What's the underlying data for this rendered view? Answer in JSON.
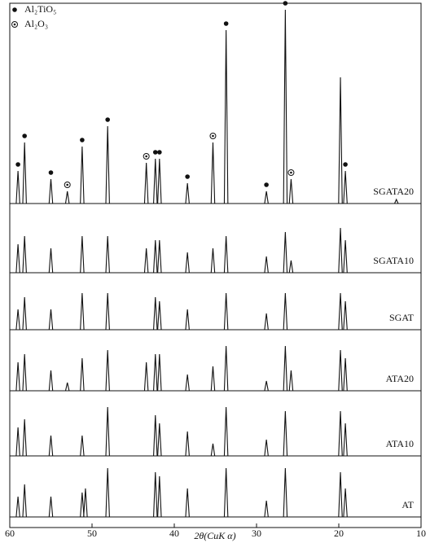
{
  "chart_data": {
    "type": "xrd",
    "xlabel": "2θ(CuK α)",
    "xlim": [
      60,
      10
    ],
    "xticks": [
      60,
      50,
      40,
      30,
      20,
      10
    ],
    "legend": [
      "Al₂TiO₅",
      "Al₂O₃"
    ],
    "series": [
      {
        "name": "SGATA20",
        "x": [
          59,
          58.2,
          55,
          53,
          51.2,
          48.1,
          43.4,
          42.3,
          41.8,
          38.4,
          35.3,
          33.7,
          28.8,
          26.5,
          25.8,
          19.8,
          19.2,
          13
        ],
        "values": [
          40,
          75,
          30,
          15,
          70,
          95,
          50,
          55,
          55,
          25,
          75,
          213,
          15,
          238,
          30,
          155,
          40,
          5
        ]
      },
      {
        "name": "SGATA10",
        "x": [
          59,
          58.2,
          55,
          51.2,
          48.1,
          43.4,
          42.3,
          41.8,
          38.4,
          35.3,
          33.7,
          28.8,
          26.5,
          25.8,
          19.8,
          19.2
        ],
        "values": [
          35,
          45,
          30,
          45,
          45,
          30,
          40,
          40,
          25,
          30,
          45,
          20,
          50,
          15,
          55,
          40
        ]
      },
      {
        "name": "SGAT",
        "x": [
          59,
          58.2,
          55,
          51.2,
          48.1,
          42.3,
          41.8,
          38.4,
          33.7,
          28.8,
          26.5,
          19.8,
          19.2
        ],
        "values": [
          25,
          40,
          25,
          45,
          45,
          40,
          35,
          25,
          45,
          20,
          45,
          45,
          35
        ]
      },
      {
        "name": "ATA20",
        "x": [
          59,
          58.2,
          55,
          53,
          51.2,
          48.1,
          43.4,
          42.3,
          41.8,
          38.4,
          35.3,
          33.7,
          28.8,
          26.5,
          25.8,
          19.8,
          19.2
        ],
        "values": [
          35,
          45,
          25,
          10,
          40,
          50,
          35,
          45,
          45,
          20,
          30,
          55,
          12,
          55,
          25,
          50,
          40
        ]
      },
      {
        "name": "ATA10",
        "x": [
          59,
          58.2,
          55,
          51.2,
          48.1,
          42.3,
          41.8,
          38.4,
          35.3,
          33.7,
          28.8,
          26.5,
          19.8,
          19.2
        ],
        "values": [
          35,
          45,
          25,
          25,
          60,
          50,
          40,
          30,
          15,
          60,
          20,
          55,
          55,
          40
        ]
      },
      {
        "name": "AT",
        "x": [
          59,
          58.2,
          55,
          51.2,
          50.8,
          48.1,
          42.3,
          41.8,
          38.4,
          33.7,
          28.8,
          26.5,
          19.8,
          19.2
        ],
        "values": [
          25,
          40,
          25,
          30,
          35,
          60,
          55,
          50,
          35,
          60,
          20,
          60,
          55,
          35
        ]
      }
    ],
    "markers": [
      {
        "x": 59,
        "phase": 0
      },
      {
        "x": 58.2,
        "phase": 0
      },
      {
        "x": 55,
        "phase": 0
      },
      {
        "x": 53,
        "phase": 1
      },
      {
        "x": 51.2,
        "phase": 0
      },
      {
        "x": 48.1,
        "phase": 0
      },
      {
        "x": 43.4,
        "phase": 1
      },
      {
        "x": 42.3,
        "phase": 0
      },
      {
        "x": 41.8,
        "phase": 0
      },
      {
        "x": 38.4,
        "phase": 0
      },
      {
        "x": 35.3,
        "phase": 1
      },
      {
        "x": 33.7,
        "phase": 0
      },
      {
        "x": 28.8,
        "phase": 0
      },
      {
        "x": 26.5,
        "phase": 0
      },
      {
        "x": 25.8,
        "phase": 1
      },
      {
        "x": 19.2,
        "phase": 0
      }
    ]
  }
}
